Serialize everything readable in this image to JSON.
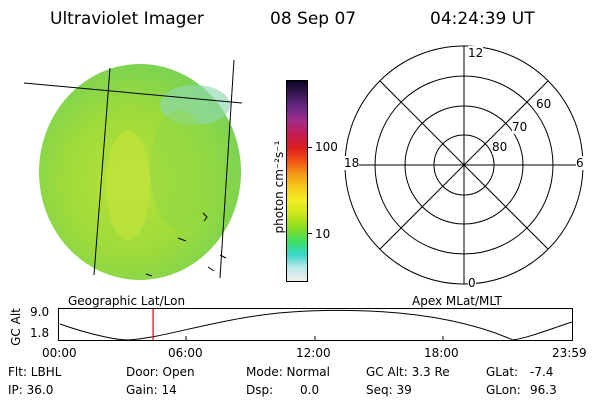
{
  "header": {
    "title": "Ultraviolet Imager",
    "date": "08 Sep 07",
    "time": "04:24:39 UT"
  },
  "colorbar": {
    "unit_label": "photon cm⁻²s⁻¹",
    "tick_100": "100",
    "tick_10": "10",
    "colors": [
      "#eeeeee",
      "#bde9e9",
      "#35d7c8",
      "#3fe05e",
      "#8ddc22",
      "#c9e61c",
      "#f3ee22",
      "#f5cc1c",
      "#f49a17",
      "#f25114",
      "#db1e1c",
      "#c21a55",
      "#a32c89",
      "#6d2a86",
      "#3a1654",
      "#0b0520"
    ]
  },
  "image_panel": {
    "label": "Geographic Lat/Lon",
    "fill_color": "#9fdc3a"
  },
  "polar_grid": {
    "label": "Apex MLat/MLT",
    "mlt_labels": {
      "top": "12",
      "left": "18",
      "right": "6",
      "bottom": "0"
    },
    "lat_labels": [
      "60",
      "70",
      "80"
    ]
  },
  "altitude_plot": {
    "ylabel": "GC Alt",
    "yticks": [
      "9.0",
      "1.8"
    ],
    "xticks": [
      "00:00",
      "06:00",
      "12:00",
      "18:00",
      "23:59"
    ],
    "marker_time": "04:24",
    "marker_color": "#e00000"
  },
  "info": {
    "row1": {
      "flt": "Flt: LBHL",
      "door": "Door: Open",
      "mode": "Mode: Normal",
      "gcalt": "GC Alt: 3.3 Re",
      "glat_label": "GLat:",
      "glat_value": "-7.4"
    },
    "row2": {
      "ip": "IP: 36.0",
      "gain": "Gain: 14",
      "dsp_label": "Dsp:",
      "dsp_value": "0.0",
      "seq": "Seq: 39",
      "glon_label": "GLon:",
      "glon_value": "96.3"
    }
  }
}
